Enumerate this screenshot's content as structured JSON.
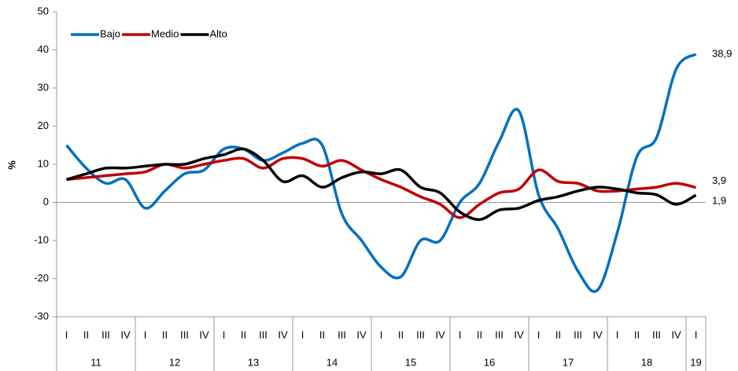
{
  "chart_data": {
    "type": "line",
    "y_label": "%",
    "categories": [
      "I",
      "II",
      "III",
      "IV",
      "I",
      "II",
      "III",
      "IV",
      "I",
      "II",
      "III",
      "IV",
      "I",
      "II",
      "III",
      "IV",
      "I",
      "II",
      "III",
      "IV",
      "I",
      "II",
      "III",
      "IV",
      "I",
      "II",
      "III",
      "IV",
      "I",
      "II",
      "III",
      "IV",
      "I"
    ],
    "category_groups": [
      "11",
      "12",
      "13",
      "14",
      "15",
      "16",
      "17",
      "18",
      "19"
    ],
    "series": [
      {
        "name": "Bajo",
        "color": "#0070c0",
        "values": [
          15,
          9,
          5,
          6,
          -1.5,
          3,
          7.5,
          8.5,
          14,
          14,
          11,
          13,
          15.5,
          15,
          -3,
          -10,
          -17,
          -19.5,
          -10,
          -10,
          0,
          5,
          16,
          24,
          2,
          -7,
          -18,
          -23,
          -8,
          12,
          17,
          35,
          38.9
        ],
        "value_labels": [
          null,
          null,
          null,
          null,
          null,
          null,
          null,
          null,
          null,
          null,
          null,
          null,
          null,
          null,
          null,
          null,
          null,
          null,
          null,
          null,
          null,
          null,
          null,
          null,
          null,
          null,
          null,
          null,
          null,
          null,
          null,
          null,
          "38,9"
        ]
      },
      {
        "name": "Medio",
        "color": "#c00000",
        "values": [
          6,
          6.5,
          7,
          7.5,
          8,
          10,
          9,
          10,
          11,
          11.5,
          9,
          11.5,
          11.5,
          9.5,
          11,
          8.5,
          6,
          4,
          1.5,
          -0.5,
          -4,
          -0.5,
          2.5,
          3.5,
          8.5,
          5.5,
          5,
          3,
          3,
          3.5,
          4,
          5,
          3.9
        ],
        "value_labels": [
          null,
          null,
          null,
          null,
          null,
          null,
          null,
          null,
          null,
          null,
          null,
          null,
          null,
          null,
          null,
          null,
          null,
          null,
          null,
          null,
          null,
          null,
          null,
          null,
          null,
          null,
          null,
          null,
          null,
          null,
          null,
          null,
          "3,9"
        ]
      },
      {
        "name": "Alto",
        "color": "#000000",
        "values": [
          6,
          7.5,
          9,
          9,
          9.5,
          10,
          10,
          11.5,
          12.5,
          14,
          11,
          5.5,
          7,
          4,
          6.5,
          8,
          7.5,
          8.5,
          4,
          2.5,
          -2.5,
          -4.5,
          -2,
          -1.5,
          0.5,
          1.5,
          3,
          4,
          3.5,
          2.5,
          2,
          -0.5,
          1.9
        ],
        "value_labels": [
          null,
          null,
          null,
          null,
          null,
          null,
          null,
          null,
          null,
          null,
          null,
          null,
          null,
          null,
          null,
          null,
          null,
          null,
          null,
          null,
          null,
          null,
          null,
          null,
          null,
          null,
          null,
          null,
          null,
          null,
          null,
          null,
          "1,9"
        ]
      }
    ],
    "ylim": [
      -30,
      50
    ],
    "yticks": [
      -30,
      -20,
      -10,
      0,
      10,
      20,
      30,
      40,
      50
    ],
    "grid": false,
    "legend": "upper-left"
  }
}
